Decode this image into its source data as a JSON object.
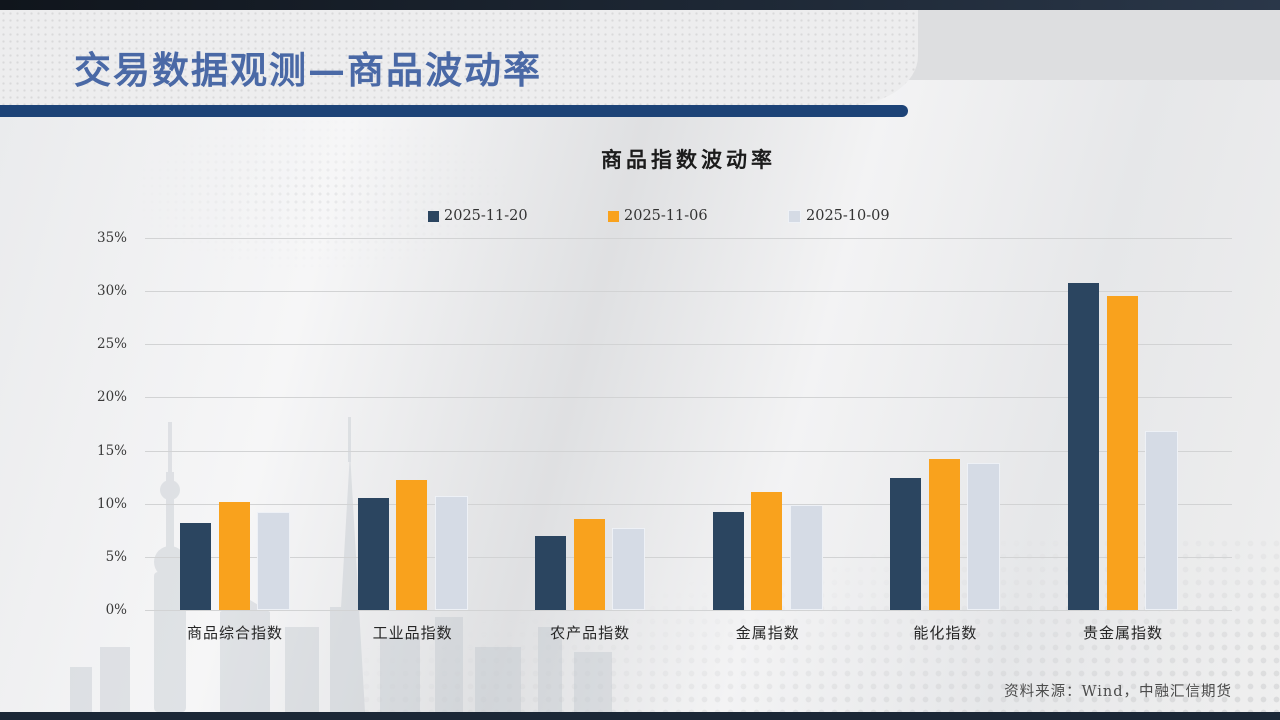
{
  "slide": {
    "page_title": "交易数据观测—商品波动率",
    "source_note": "资料来源：Wind，中融汇信期货"
  },
  "chart_data": {
    "type": "bar",
    "title": "商品指数波动率",
    "categories": [
      "商品综合指数",
      "工业品指数",
      "农产品指数",
      "金属指数",
      "能化指数",
      "贵金属指数"
    ],
    "series": [
      {
        "name": "2025-11-20",
        "color": "#2b4560",
        "values": [
          8.2,
          10.5,
          7.0,
          9.2,
          12.4,
          30.8
        ]
      },
      {
        "name": "2025-11-06",
        "color": "#f9a21d",
        "values": [
          10.2,
          12.2,
          8.6,
          11.1,
          14.2,
          29.5
        ]
      },
      {
        "name": "2025-10-09",
        "color": "#d5dbe5",
        "border": "#eef1f6",
        "values": [
          9.0,
          10.5,
          7.5,
          9.7,
          13.6,
          16.7
        ]
      }
    ],
    "xlabel": "",
    "ylabel": "",
    "ylim": [
      0,
      35
    ],
    "ytick_step": 5,
    "ytick_suffix": "%",
    "grid": true,
    "legend_position": "top-center"
  },
  "colors": {
    "title_blue": "#4a69a6",
    "rule_navy": "#1d4377",
    "gridline": "#d2d3d4"
  }
}
